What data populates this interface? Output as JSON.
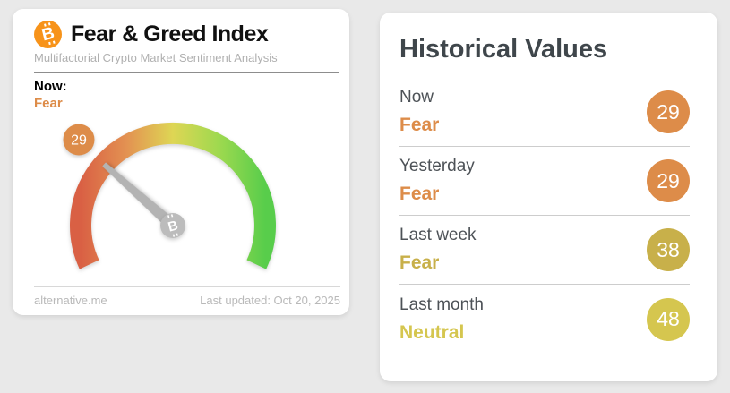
{
  "colors": {
    "bitcoin_orange": "#f7931a",
    "fear_orange": "#dd8c49",
    "gold": "#c8b04a",
    "neutral_yellow": "#d5c64f",
    "gauge_gradient": [
      "#d96044",
      "#e39252",
      "#ded654",
      "#9ed94f",
      "#58cd4b"
    ]
  },
  "gauge_card": {
    "bitcoin_glyph": "B",
    "title": "Fear & Greed Index",
    "subtitle": "Multifactorial Crypto Market Sentiment Analysis",
    "now_label": "Now:",
    "now_sentiment": "Fear",
    "gauge": {
      "value": 29,
      "min": 0,
      "max": 100
    },
    "footer": {
      "source": "alternative.me",
      "last_updated": "Last updated: Oct 20, 2025"
    }
  },
  "historical_card": {
    "title": "Historical Values",
    "rows": [
      {
        "label": "Now",
        "sentiment": "Fear",
        "value": "29",
        "color": "#dd8c49"
      },
      {
        "label": "Yesterday",
        "sentiment": "Fear",
        "value": "29",
        "color": "#dd8c49"
      },
      {
        "label": "Last week",
        "sentiment": "Fear",
        "value": "38",
        "color": "#c8b04a"
      },
      {
        "label": "Last month",
        "sentiment": "Neutral",
        "value": "48",
        "color": "#d5c64f"
      }
    ]
  }
}
